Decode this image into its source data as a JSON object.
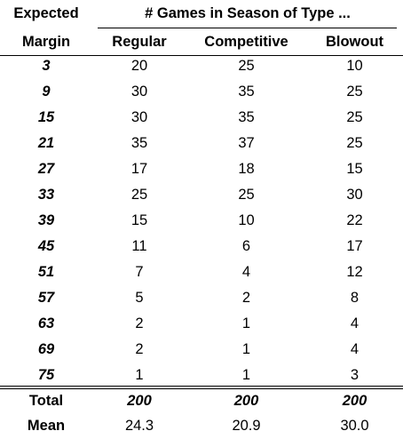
{
  "header": {
    "col0_line1": "Expected",
    "col0_line2": "Margin",
    "span_title": "# Games in Season of Type ...",
    "col1": "Regular",
    "col2": "Competitive",
    "col3": "Blowout"
  },
  "rows": [
    {
      "margin": "3",
      "regular": "20",
      "competitive": "25",
      "blowout": "10"
    },
    {
      "margin": "9",
      "regular": "30",
      "competitive": "35",
      "blowout": "25"
    },
    {
      "margin": "15",
      "regular": "30",
      "competitive": "35",
      "blowout": "25"
    },
    {
      "margin": "21",
      "regular": "35",
      "competitive": "37",
      "blowout": "25"
    },
    {
      "margin": "27",
      "regular": "17",
      "competitive": "18",
      "blowout": "15"
    },
    {
      "margin": "33",
      "regular": "25",
      "competitive": "25",
      "blowout": "30"
    },
    {
      "margin": "39",
      "regular": "15",
      "competitive": "10",
      "blowout": "22"
    },
    {
      "margin": "45",
      "regular": "11",
      "competitive": "6",
      "blowout": "17"
    },
    {
      "margin": "51",
      "regular": "7",
      "competitive": "4",
      "blowout": "12"
    },
    {
      "margin": "57",
      "regular": "5",
      "competitive": "2",
      "blowout": "8"
    },
    {
      "margin": "63",
      "regular": "2",
      "competitive": "1",
      "blowout": "4"
    },
    {
      "margin": "69",
      "regular": "2",
      "competitive": "1",
      "blowout": "4"
    },
    {
      "margin": "75",
      "regular": "1",
      "competitive": "1",
      "blowout": "3"
    }
  ],
  "total": {
    "label": "Total",
    "regular": "200",
    "competitive": "200",
    "blowout": "200"
  },
  "mean": {
    "label": "Mean",
    "regular": "24.3",
    "competitive": "20.9",
    "blowout": "30.0"
  }
}
